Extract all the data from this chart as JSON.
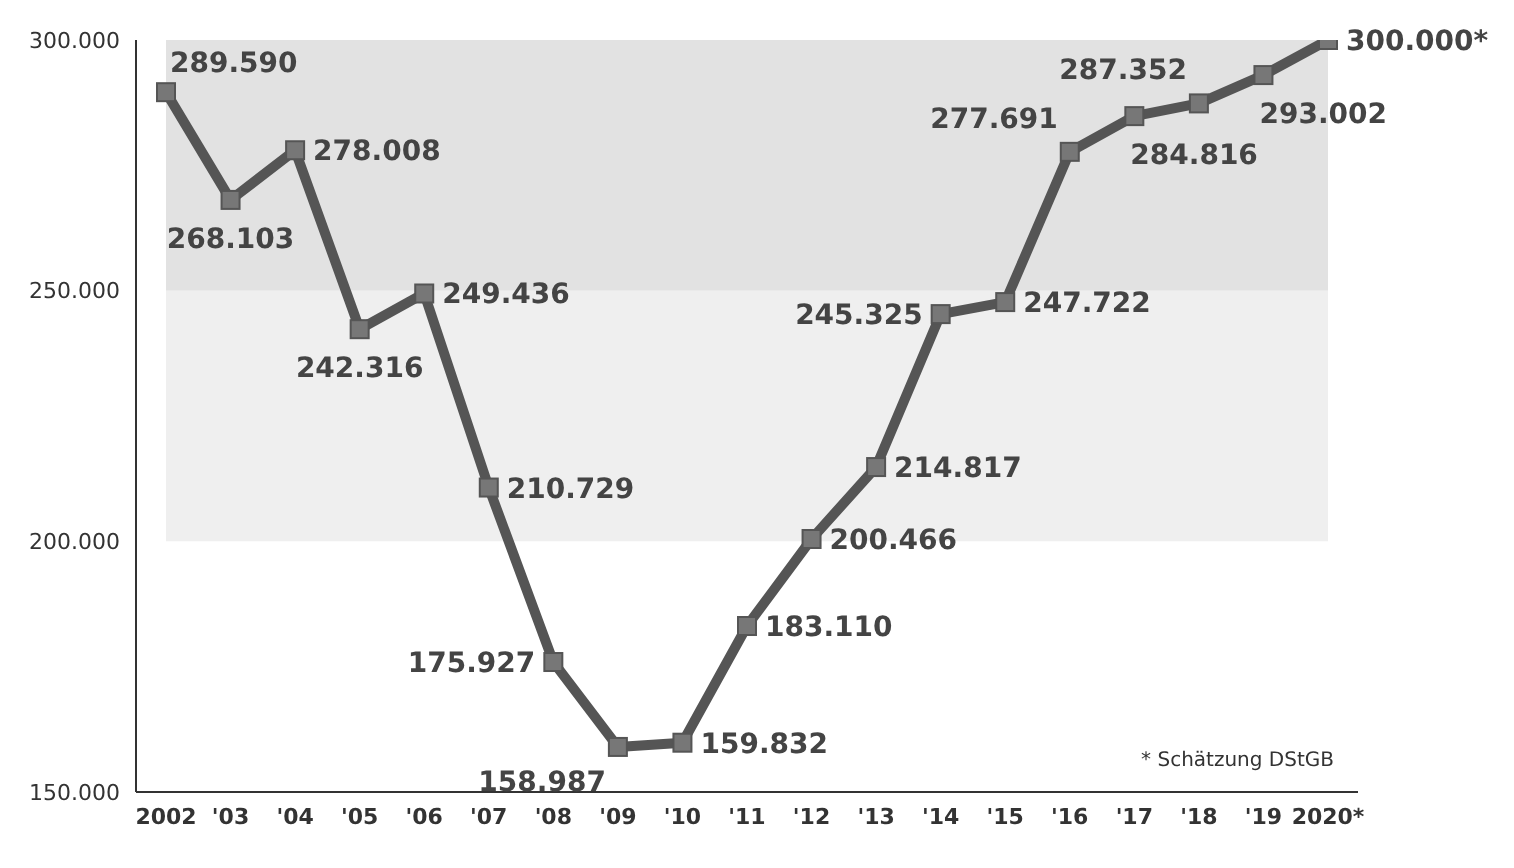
{
  "chart_data": {
    "type": "line",
    "categories": [
      "2002",
      "'03",
      "'04",
      "'05",
      "'06",
      "'07",
      "'08",
      "'09",
      "'10",
      "'11",
      "'12",
      "'13",
      "'14",
      "'15",
      "'16",
      "'17",
      "'18",
      "'19",
      "2020*"
    ],
    "series": [
      {
        "color": "#555555",
        "values": [
          289590,
          268103,
          278008,
          242316,
          249436,
          210729,
          175927,
          158987,
          159832,
          183110,
          200466,
          214817,
          245325,
          247722,
          277691,
          284816,
          287352,
          293002,
          300000
        ],
        "value_labels": [
          "289.590",
          "268.103",
          "278.008",
          "242.316",
          "249.436",
          "210.729",
          "175.927",
          "158.987",
          "159.832",
          "183.110",
          "200.466",
          "214.817",
          "245.325",
          "247.722",
          "277.691",
          "284.816",
          "287.352",
          "293.002",
          "300.000*"
        ]
      }
    ],
    "ylim": [
      150000,
      300000
    ],
    "yticks": [
      {
        "value": 150000,
        "label": "150.000"
      },
      {
        "value": 200000,
        "label": "200.000"
      },
      {
        "value": 250000,
        "label": "250.000"
      },
      {
        "value": 300000,
        "label": "300.000"
      }
    ],
    "bands": [
      {
        "axis": "y",
        "from": 250000,
        "to": 300000,
        "color": "#e2e2e2"
      },
      {
        "axis": "y",
        "from": 200000,
        "to": 250000,
        "color": "#efefef"
      }
    ],
    "marker": "square",
    "line_style": "solid",
    "grid": false,
    "annotations": [
      "* Schätzung DStGB"
    ]
  }
}
